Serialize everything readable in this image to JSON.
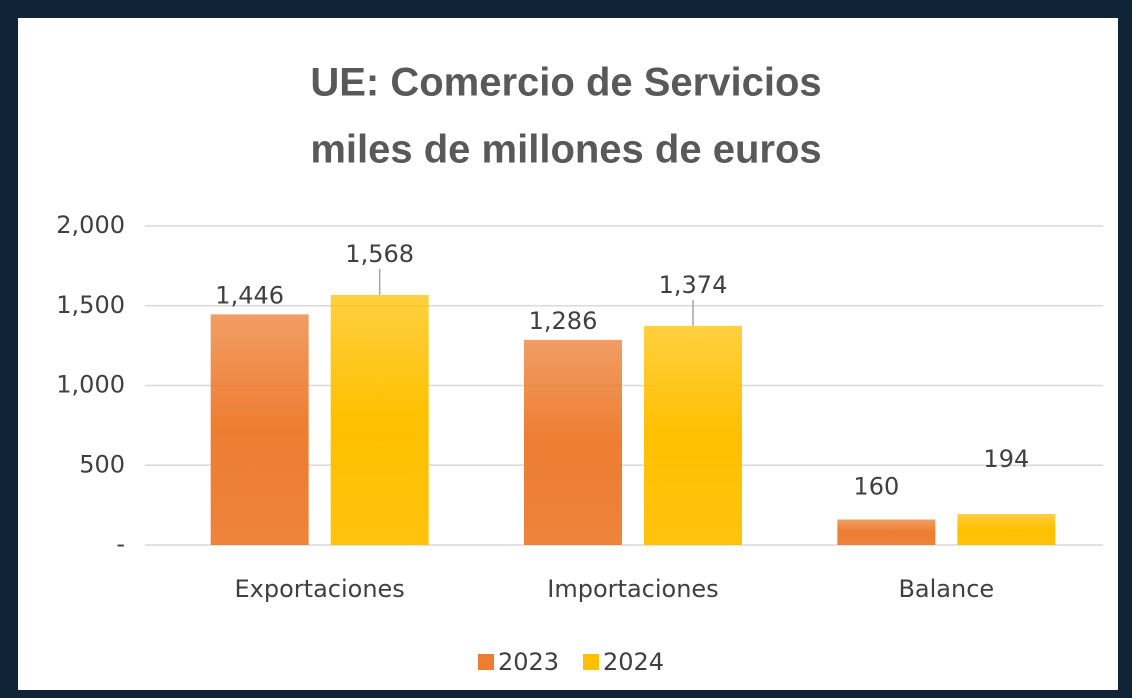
{
  "chart_data": {
    "type": "bar",
    "title": "UE: Comercio de Servicios",
    "subtitle": "miles de millones de euros",
    "categories": [
      "Exportaciones",
      "Importaciones",
      "Balance"
    ],
    "series": [
      {
        "name": "2023",
        "color": "#ed7d31",
        "values": [
          1446,
          1286,
          160
        ],
        "value_labels": [
          "1,446",
          "1,286",
          "160"
        ]
      },
      {
        "name": "2024",
        "color": "#ffc000",
        "values": [
          1568,
          1374,
          194
        ],
        "value_labels": [
          "1,568",
          "1,374",
          "194"
        ]
      }
    ],
    "ylim": [
      0,
      2000
    ],
    "yticks": [
      {
        "value": 0,
        "label": "-"
      },
      500,
      {
        "value": 1000,
        "label": "1,000"
      },
      {
        "value": 1500,
        "label": "1,500"
      },
      {
        "value": 2000,
        "label": "2,000"
      }
    ],
    "grid": true,
    "legend": "bottom"
  }
}
